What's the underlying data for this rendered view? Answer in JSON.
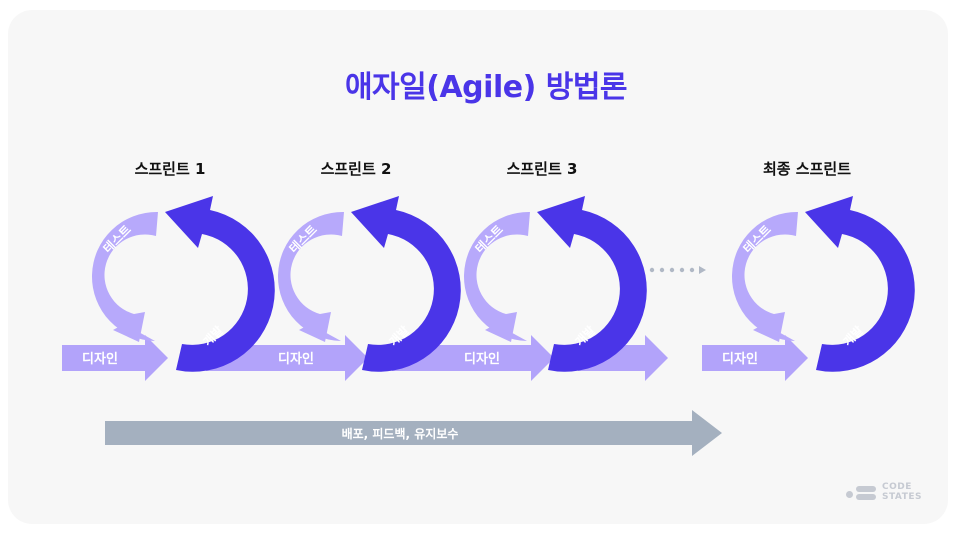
{
  "title": "애자일(Agile) 방법론",
  "sprints": [
    {
      "label": "스프린트 1",
      "test": "테스트",
      "dev": "개발",
      "design": "디자인"
    },
    {
      "label": "스프린트 2",
      "test": "테스트",
      "dev": "개발",
      "design": "디자인"
    },
    {
      "label": "스프린트 3",
      "test": "테스트",
      "dev": "개발",
      "design": "디자인"
    },
    {
      "label": "최종 스프린트",
      "test": "테스트",
      "dev": "개발",
      "design": "디자인"
    }
  ],
  "bottom_arrow": "배포, 피드백, 유지보수",
  "logo": {
    "line1": "CODE",
    "line2": "STATES"
  },
  "colors": {
    "title": "#4a35e8",
    "dark_arc": "#4a35e8",
    "light_arc": "#b7a9fb",
    "design_arrow": "#b2a3fa",
    "bottom_arrow": "#a4b0bf",
    "dots": "#b0b8c5"
  }
}
